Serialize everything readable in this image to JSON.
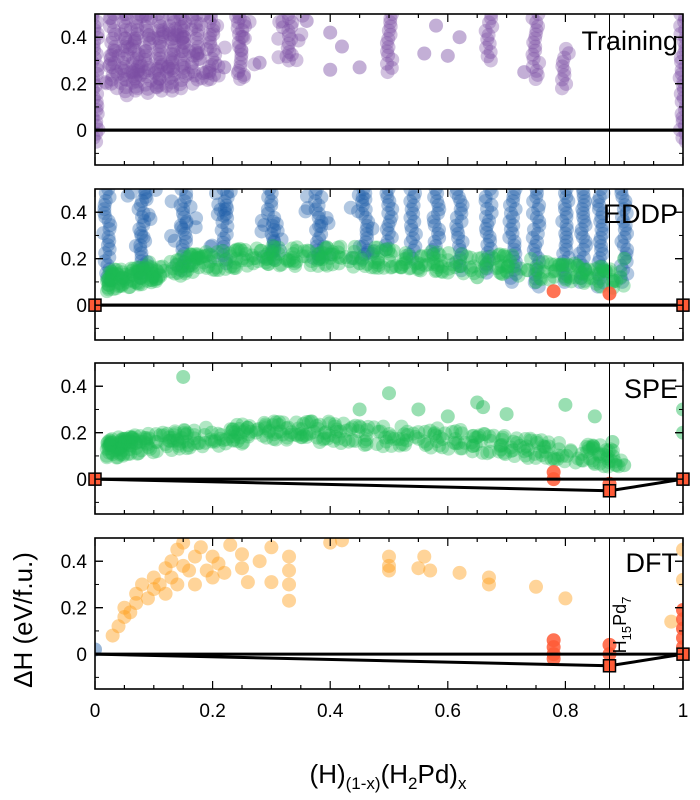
{
  "chart_data": {
    "type": "scatter",
    "xlabel": "(H)(1-x)(H2Pd)x",
    "xlabel_parts": {
      "a": "(H)",
      "a_sub": "(1-x)",
      "b": "(H",
      "b_sub": "2",
      "c": "Pd)",
      "c_sub": "x"
    },
    "ylabel": "ΔH (eV/f.u.)",
    "xlim": [
      0,
      1
    ],
    "ylim": [
      -0.15,
      0.5
    ],
    "x_ticks": [
      0,
      0.2,
      0.4,
      0.6,
      0.8,
      1
    ],
    "x_tick_labels": [
      "0",
      "0.2",
      "0.4",
      "0.6",
      "0.8",
      "1"
    ],
    "y_ticks": [
      0,
      0.2,
      0.4
    ],
    "y_tick_labels": [
      "0",
      "0.2",
      "0.4"
    ],
    "vertical_line_x": 0.875,
    "phase_label": {
      "main": "H",
      "sub1": "15",
      "mid": "Pd",
      "sub2": "7"
    },
    "panels": [
      {
        "label": "Training",
        "series": [
          {
            "name": "training",
            "color": "#7b4ea3",
            "columns": [
              {
                "x": 0.0,
                "ymin": -0.05,
                "ymax": 0.5
              },
              {
                "x": 0.03,
                "ymin": 0.2,
                "ymax": 0.5
              },
              {
                "x": 0.05,
                "ymin": 0.15,
                "ymax": 0.5
              },
              {
                "x": 0.07,
                "ymin": 0.17,
                "ymax": 0.5
              },
              {
                "x": 0.09,
                "ymin": 0.16,
                "ymax": 0.5
              },
              {
                "x": 0.11,
                "ymin": 0.17,
                "ymax": 0.5
              },
              {
                "x": 0.13,
                "ymin": 0.17,
                "ymax": 0.5
              },
              {
                "x": 0.15,
                "ymin": 0.18,
                "ymax": 0.5
              },
              {
                "x": 0.17,
                "ymin": 0.2,
                "ymax": 0.5
              },
              {
                "x": 0.2,
                "ymin": 0.22,
                "ymax": 0.5
              },
              {
                "x": 0.25,
                "ymin": 0.22,
                "ymax": 0.5
              },
              {
                "x": 0.33,
                "ymin": 0.3,
                "ymax": 0.5
              },
              {
                "x": 0.5,
                "ymin": 0.25,
                "ymax": 0.5
              },
              {
                "x": 0.67,
                "ymin": 0.3,
                "ymax": 0.5
              },
              {
                "x": 0.75,
                "ymin": 0.22,
                "ymax": 0.5
              },
              {
                "x": 0.8,
                "ymin": 0.18,
                "ymax": 0.35
              },
              {
                "x": 1.0,
                "ymin": -0.05,
                "ymax": 0.5
              }
            ],
            "points": [
              [
                0.22,
                0.27
              ],
              [
                0.28,
                0.29
              ],
              [
                0.4,
                0.42
              ],
              [
                0.42,
                0.36
              ],
              [
                0.56,
                0.33
              ],
              [
                0.6,
                0.32
              ],
              [
                0.62,
                0.4
              ],
              [
                0.45,
                0.27
              ],
              [
                0.4,
                0.26
              ],
              [
                0.58,
                0.45
              ],
              [
                0.36,
                0.47
              ],
              [
                0.73,
                0.25
              ]
            ]
          }
        ],
        "hull": [
          [
            0,
            0
          ],
          [
            1,
            0
          ]
        ],
        "reference_line": [
          0,
          1
        ]
      },
      {
        "label": "EDDP",
        "series": [
          {
            "name": "blue",
            "color": "#1f5fa8",
            "columns": [
              {
                "x": 0.02,
                "ymin": 0.12,
                "ymax": 0.5
              },
              {
                "x": 0.08,
                "ymin": 0.12,
                "ymax": 0.5
              },
              {
                "x": 0.15,
                "ymin": 0.15,
                "ymax": 0.5
              },
              {
                "x": 0.22,
                "ymin": 0.18,
                "ymax": 0.5
              },
              {
                "x": 0.3,
                "ymin": 0.2,
                "ymax": 0.5
              },
              {
                "x": 0.38,
                "ymin": 0.2,
                "ymax": 0.5
              },
              {
                "x": 0.46,
                "ymin": 0.2,
                "ymax": 0.5
              },
              {
                "x": 0.5,
                "ymin": 0.24,
                "ymax": 0.5
              },
              {
                "x": 0.54,
                "ymin": 0.2,
                "ymax": 0.5
              },
              {
                "x": 0.58,
                "ymin": 0.22,
                "ymax": 0.5
              },
              {
                "x": 0.62,
                "ymin": 0.15,
                "ymax": 0.5
              },
              {
                "x": 0.67,
                "ymin": 0.14,
                "ymax": 0.5
              },
              {
                "x": 0.71,
                "ymin": 0.1,
                "ymax": 0.5
              },
              {
                "x": 0.75,
                "ymin": 0.08,
                "ymax": 0.5
              },
              {
                "x": 0.8,
                "ymin": 0.1,
                "ymax": 0.5
              },
              {
                "x": 0.83,
                "ymin": 0.1,
                "ymax": 0.5
              },
              {
                "x": 0.86,
                "ymin": 0.08,
                "ymax": 0.5
              },
              {
                "x": 0.9,
                "ymin": 0.1,
                "ymax": 0.5
              }
            ],
            "points": []
          },
          {
            "name": "green",
            "color": "#1db954",
            "trend": [
              [
                0.02,
                0.09
              ],
              [
                0.1,
                0.13
              ],
              [
                0.2,
                0.18
              ],
              [
                0.3,
                0.2
              ],
              [
                0.4,
                0.2
              ],
              [
                0.5,
                0.19
              ],
              [
                0.6,
                0.17
              ],
              [
                0.7,
                0.16
              ],
              [
                0.8,
                0.13
              ],
              [
                0.9,
                0.1
              ]
            ],
            "points": [
              [
                0.45,
                0.18
              ],
              [
                0.55,
                0.16
              ],
              [
                0.65,
                0.12
              ],
              [
                0.75,
                0.1
              ],
              [
                0.8,
                0.11
              ],
              [
                0.86,
                0.08
              ],
              [
                0.88,
                0.1
              ],
              [
                0.9,
                0.2
              ]
            ]
          },
          {
            "name": "red",
            "color": "#ff5a36",
            "points": [
              [
                0.78,
                0.06
              ],
              [
                0.875,
                0.05
              ]
            ]
          }
        ],
        "hull": [
          [
            0,
            0
          ],
          [
            1,
            0
          ]
        ],
        "reference_line": [
          0,
          1
        ],
        "endpoint_squares": [
          [
            0,
            0
          ],
          [
            1,
            0
          ]
        ]
      },
      {
        "label": "SPE",
        "series": [
          {
            "name": "green",
            "color": "#1db954",
            "trend": [
              [
                0.02,
                0.12
              ],
              [
                0.1,
                0.14
              ],
              [
                0.2,
                0.17
              ],
              [
                0.3,
                0.19
              ],
              [
                0.4,
                0.19
              ],
              [
                0.5,
                0.17
              ],
              [
                0.6,
                0.16
              ],
              [
                0.7,
                0.13
              ],
              [
                0.8,
                0.1
              ],
              [
                0.9,
                0.08
              ]
            ],
            "points": [
              [
                0.15,
                0.44
              ],
              [
                0.5,
                0.37
              ],
              [
                0.65,
                0.33
              ],
              [
                0.66,
                0.31
              ],
              [
                0.7,
                0.28
              ],
              [
                0.8,
                0.32
              ],
              [
                0.85,
                0.27
              ],
              [
                0.88,
                0.16
              ],
              [
                0.9,
                0.06
              ],
              [
                0.55,
                0.3
              ],
              [
                0.45,
                0.3
              ],
              [
                0.6,
                0.27
              ],
              [
                1.0,
                0.3
              ],
              [
                1.0,
                0.2
              ]
            ]
          },
          {
            "name": "red",
            "color": "#ff5a36",
            "points": [
              [
                0.78,
                0.03
              ],
              [
                0.78,
                0.0
              ],
              [
                0.875,
                -0.02
              ]
            ]
          }
        ],
        "hull": [
          [
            0,
            0
          ],
          [
            0.875,
            -0.05
          ],
          [
            1,
            0
          ]
        ],
        "reference_line": [
          0,
          1
        ],
        "endpoint_squares": [
          [
            0,
            0
          ],
          [
            0.875,
            -0.05
          ],
          [
            1,
            0
          ]
        ]
      },
      {
        "label": "DFT",
        "series": [
          {
            "name": "orange",
            "color": "#ff9f1c",
            "points": [
              [
                0.03,
                0.08
              ],
              [
                0.04,
                0.12
              ],
              [
                0.05,
                0.16
              ],
              [
                0.05,
                0.2
              ],
              [
                0.06,
                0.18
              ],
              [
                0.07,
                0.22
              ],
              [
                0.07,
                0.26
              ],
              [
                0.08,
                0.3
              ],
              [
                0.09,
                0.24
              ],
              [
                0.1,
                0.28
              ],
              [
                0.1,
                0.33
              ],
              [
                0.11,
                0.3
              ],
              [
                0.12,
                0.37
              ],
              [
                0.12,
                0.26
              ],
              [
                0.13,
                0.4
              ],
              [
                0.13,
                0.33
              ],
              [
                0.14,
                0.45
              ],
              [
                0.14,
                0.3
              ],
              [
                0.15,
                0.38
              ],
              [
                0.15,
                0.48
              ],
              [
                0.16,
                0.36
              ],
              [
                0.17,
                0.42
              ],
              [
                0.17,
                0.3
              ],
              [
                0.18,
                0.46
              ],
              [
                0.19,
                0.36
              ],
              [
                0.2,
                0.33
              ],
              [
                0.2,
                0.42
              ],
              [
                0.21,
                0.39
              ],
              [
                0.22,
                0.35
              ],
              [
                0.23,
                0.47
              ],
              [
                0.25,
                0.43
              ],
              [
                0.25,
                0.37
              ],
              [
                0.26,
                0.31
              ],
              [
                0.28,
                0.4
              ],
              [
                0.3,
                0.46
              ],
              [
                0.3,
                0.31
              ],
              [
                0.33,
                0.42
              ],
              [
                0.33,
                0.36
              ],
              [
                0.33,
                0.23
              ],
              [
                0.33,
                0.3
              ],
              [
                0.4,
                0.48
              ],
              [
                0.42,
                0.49
              ],
              [
                0.5,
                0.42
              ],
              [
                0.5,
                0.38
              ],
              [
                0.5,
                0.36
              ],
              [
                0.55,
                0.37
              ],
              [
                0.56,
                0.42
              ],
              [
                0.57,
                0.36
              ],
              [
                0.62,
                0.35
              ],
              [
                0.67,
                0.3
              ],
              [
                0.67,
                0.33
              ],
              [
                0.75,
                0.29
              ],
              [
                0.8,
                0.24
              ],
              [
                1.0,
                0.45
              ],
              [
                1.0,
                0.32
              ],
              [
                0.98,
                0.14
              ]
            ]
          },
          {
            "name": "red",
            "color": "#ff5a36",
            "points": [
              [
                0.78,
                0.06
              ],
              [
                0.78,
                0.03
              ],
              [
                0.78,
                0.0
              ],
              [
                0.78,
                -0.02
              ],
              [
                0.875,
                0.04
              ],
              [
                0.875,
                0.0
              ],
              [
                1.0,
                0.19
              ],
              [
                1.0,
                0.15
              ],
              [
                1.0,
                0.11
              ],
              [
                1.0,
                0.07
              ],
              [
                1.0,
                0.03
              ]
            ]
          },
          {
            "name": "blue",
            "color": "#1f5fa8",
            "points": [
              [
                0.0,
                0.02
              ]
            ]
          }
        ],
        "hull": [
          [
            0,
            0
          ],
          [
            0.875,
            -0.05
          ],
          [
            1,
            0
          ]
        ],
        "reference_line": [
          0,
          1
        ],
        "endpoint_squares": [
          [
            0.875,
            -0.05
          ],
          [
            1,
            0
          ]
        ]
      }
    ]
  }
}
